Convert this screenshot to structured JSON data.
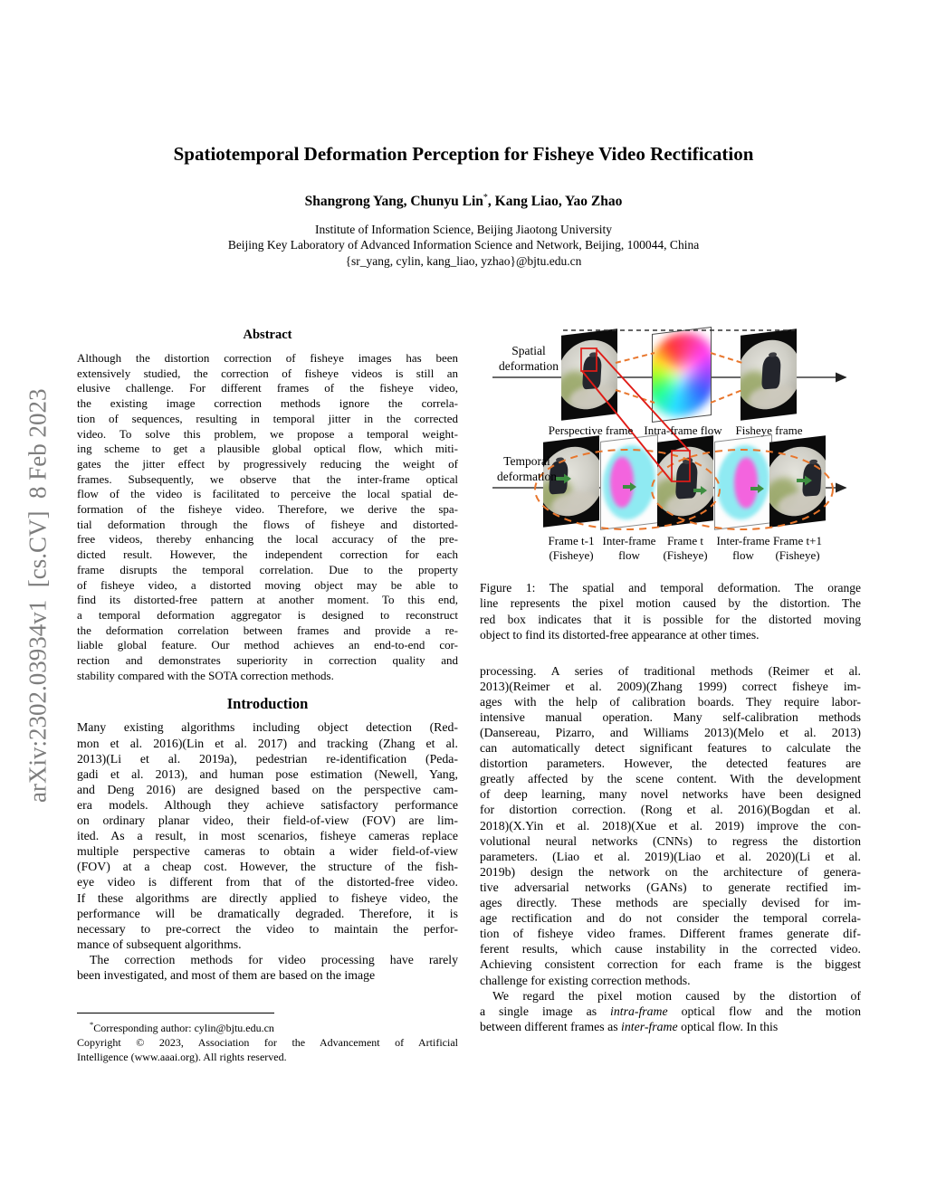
{
  "arxiv_banner": "arXiv:2302.03934v1  [cs.CV]  8 Feb 2023",
  "header": {
    "title": "Spatiotemporal Deformation Perception for Fisheye Video Rectification",
    "authors_main": "Shangrong Yang, Chunyu Lin",
    "authors_sup": "*",
    "authors_rest": ", Kang Liao, Yao Zhao",
    "affiliation1": "Institute of Information Science, Beijing Jiaotong University",
    "affiliation2": "Beijing Key Laboratory of Advanced Information Science and Network, Beijing, 100044, China",
    "email": "{sr_yang, cylin, kang_liao, yzhao}@bjtu.edu.cn"
  },
  "abstract": {
    "heading": "Abstract",
    "paragraphs": [
      {
        "indent": false,
        "lines": [
          "Although the distortion correction of fisheye images has been",
          "extensively studied, the correction of fisheye videos is still an",
          "elusive challenge. For different frames of the fisheye video,",
          "the existing image correction methods ignore the correla-",
          "tion of sequences, resulting in temporal jitter in the corrected",
          "video. To solve this problem, we propose a temporal weight-",
          "ing scheme to get a plausible global optical flow, which miti-",
          "gates the jitter effect by progressively reducing the weight of",
          "frames. Subsequently, we observe that the inter-frame optical",
          "flow of the video is facilitated to perceive the local spatial de-",
          "formation of the fisheye video. Therefore, we derive the spa-",
          "tial deformation through the flows of fisheye and distorted-",
          "free videos, thereby enhancing the local accuracy of the pre-",
          "dicted result. However, the independent correction for each",
          "frame disrupts the temporal correlation. Due to the property",
          "of fisheye video, a distorted moving object may be able to",
          "find its distorted-free pattern at another moment. To this end,",
          "a temporal deformation aggregator is designed to reconstruct",
          "the deformation correlation between frames and provide a re-",
          "liable global feature. Our method achieves an end-to-end cor-",
          "rection and demonstrates superiority in correction quality and",
          "stability compared with the SOTA correction methods."
        ]
      }
    ]
  },
  "introduction": {
    "heading": "Introduction",
    "paragraphs": [
      {
        "indent": false,
        "lines": [
          "Many existing algorithms including object detection (Red-",
          "mon et al. 2016)(Lin et al. 2017) and tracking (Zhang et al.",
          "2013)(Li et al. 2019a), pedestrian re-identification (Peda-",
          "gadi et al. 2013), and human pose estimation (Newell, Yang,",
          "and Deng 2016) are designed based on the perspective cam-",
          "era models. Although they achieve satisfactory performance",
          "on ordinary planar video, their field-of-view (FOV) are lim-",
          "ited. As a result, in most scenarios, fisheye cameras replace",
          "multiple perspective cameras to obtain a wider field-of-view",
          "(FOV) at a cheap cost. However, the structure of the fish-",
          "eye video is different from that of the distorted-free video.",
          "If these algorithms are directly applied to fisheye video, the",
          "performance will be dramatically degraded. Therefore, it is",
          "necessary to pre-correct the video to maintain the perfor-",
          "mance of subsequent algorithms."
        ]
      },
      {
        "indent": true,
        "lines": [
          "The correction methods for video processing have rarely",
          "been investigated, and most of them are based on the image"
        ]
      }
    ]
  },
  "footnote": {
    "paragraphs": [
      {
        "indent": true,
        "lines": [
          "^*^Corresponding author: cylin@bjtu.edu.cn"
        ]
      },
      {
        "indent": false,
        "lines": [
          "Copyright © 2023, Association for the Advancement of Artificial",
          "Intelligence (www.aaai.org). All rights reserved."
        ]
      }
    ]
  },
  "figure": {
    "axis_labels": {
      "spatial": [
        "Spatial",
        "deformation"
      ],
      "temporal": [
        "Temporal",
        "deformation"
      ]
    },
    "row1_labels": [
      "Perspective frame",
      "Intra-frame flow",
      "Fisheye frame"
    ],
    "row2_labels": [
      [
        "Frame t-1",
        "(Fisheye)"
      ],
      [
        "Inter-frame",
        "flow"
      ],
      [
        "Frame t",
        "(Fisheye)"
      ],
      [
        "Inter-frame",
        "flow"
      ],
      [
        "Frame t+1",
        "(Fisheye)"
      ]
    ],
    "caption": {
      "paragraphs": [
        {
          "indent": false,
          "lines": [
            "Figure 1:  The spatial and temporal deformation. The orange",
            "line represents the pixel motion caused by the distortion. The",
            "red box indicates that it is possible for the distorted moving",
            "object to find its distorted-free appearance at other times."
          ]
        }
      ]
    }
  },
  "right_column": {
    "paragraphs": [
      {
        "indent": false,
        "lines": [
          "processing. A series of traditional methods (Reimer et al.",
          "2013)(Reimer et al. 2009)(Zhang 1999) correct fisheye im-",
          "ages with the help of calibration boards. They require labor-",
          "intensive manual operation. Many self-calibration methods",
          "(Dansereau, Pizarro, and Williams 2013)(Melo et al. 2013)",
          "can automatically detect significant features to calculate the",
          "distortion parameters. However, the detected features are",
          "greatly affected by the scene content. With the development",
          "of deep learning, many novel networks have been designed",
          "for distortion correction. (Rong et al. 2016)(Bogdan et al.",
          "2018)(X.Yin et al. 2018)(Xue et al. 2019) improve the con-",
          "volutional neural networks (CNNs) to regress the distortion",
          "parameters. (Liao et al. 2019)(Liao et al. 2020)(Li et al.",
          "2019b) design the network on the architecture of genera-",
          "tive adversarial networks (GANs) to generate rectified im-",
          "ages directly. These methods are specially devised for im-",
          "age rectification and do not consider the temporal correla-",
          "tion of fisheye video frames. Different frames generate dif-",
          "ferent results, which cause instability in the corrected video.",
          "Achieving consistent correction for each frame is the biggest",
          "challenge for existing correction methods."
        ]
      },
      {
        "indent": true,
        "lines": [
          "We regard the pixel motion caused by the distortion of",
          "a single image as *intra-frame* optical flow and the motion",
          "between different frames as *inter-frame* optical flow. In this"
        ]
      }
    ]
  },
  "colors": {
    "orange_dash": "#e8762c",
    "red_highlight": "#e01b16",
    "flow_cyan": "#8feaf2",
    "flow_magenta": "#f364de",
    "arrow_green": "#3e8e41",
    "banner_gray": "#7d7d7d"
  }
}
